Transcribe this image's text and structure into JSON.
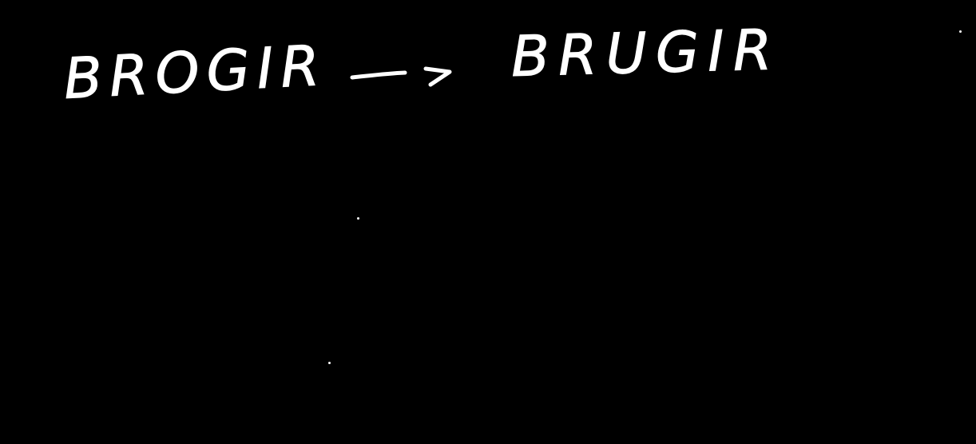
{
  "board": {
    "background_color": "#000000",
    "ink_color": "#ffffff"
  },
  "handwriting": {
    "left_word": "BROGIR",
    "arrow_icon": "right-arrow-icon",
    "right_word": "BRUGIR"
  }
}
